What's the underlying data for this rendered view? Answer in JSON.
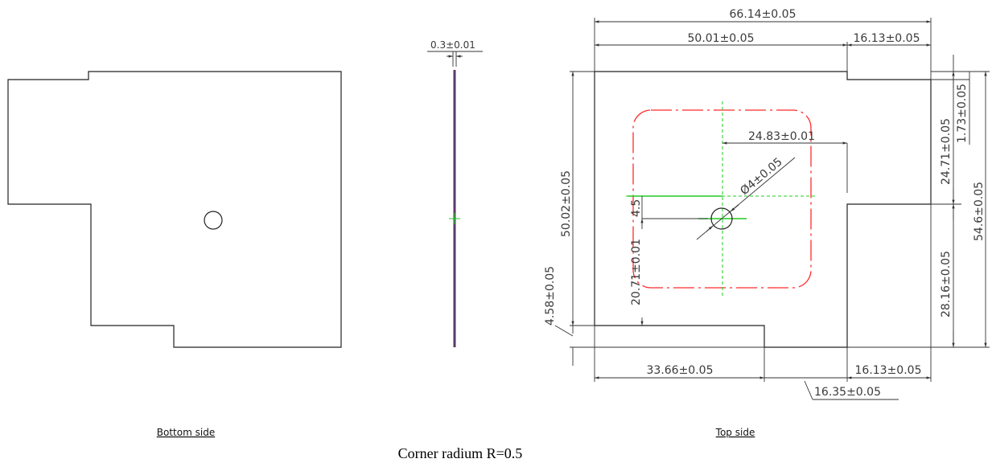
{
  "views": {
    "bottom": {
      "caption": "Bottom side"
    },
    "top": {
      "caption": "Top side"
    }
  },
  "dims": {
    "thickness": "0.3±0.01",
    "overall_width": "66.14±0.05",
    "upper_left_width": "50.01±0.05",
    "upper_right_width": "16.13±0.05",
    "hole_offset_x": "24.83±0.01",
    "hole_diameter": "Ø4±0.05",
    "small_4_5": "4.5",
    "height_left": "50.02±0.05",
    "hole_offset_y": "20.71±0.01",
    "step_left": "4.58±0.05",
    "lower_left_width": "33.66±0.05",
    "lower_right_width": "16.13±0.05",
    "lower_mid_width": "16.35±0.05",
    "right_upper_height": "24.71±0.05",
    "right_step": "1.73±0.05",
    "right_lower_height": "28.16±0.05",
    "overall_height": "54.6±0.05"
  },
  "note": "Corner radium R=0.5",
  "colors": {
    "outline": "#222222",
    "red_dashed": "#ff2b2b",
    "green_center": "#22cc22",
    "edge_purple": "#5a3a6a"
  }
}
